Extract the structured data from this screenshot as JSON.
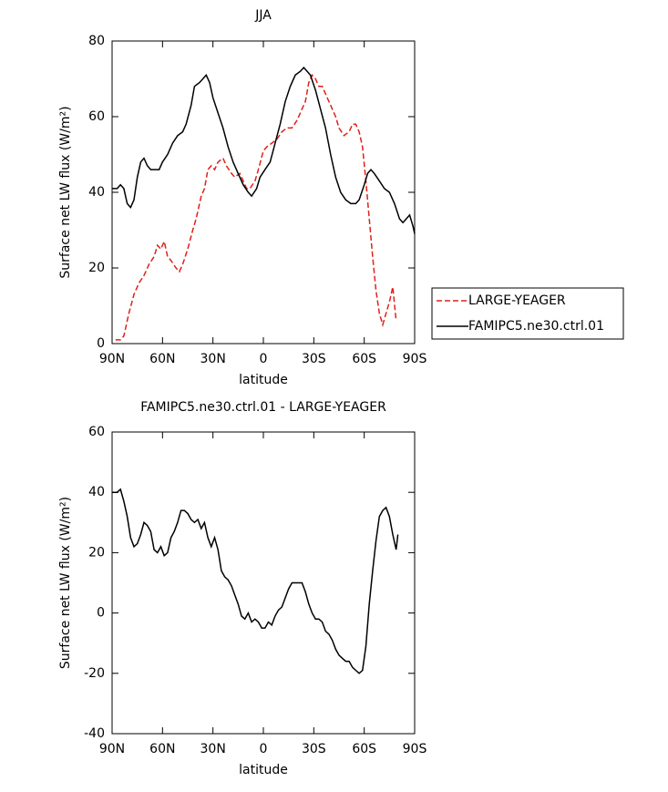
{
  "chart_data": [
    {
      "type": "line",
      "title": "JJA",
      "xlabel": "latitude",
      "ylabel": "Surface net LW flux (W/m²)",
      "xlim": [
        90,
        -90
      ],
      "xticks": [
        {
          "value": 90,
          "label": "90N"
        },
        {
          "value": 60,
          "label": "60N"
        },
        {
          "value": 30,
          "label": "30N"
        },
        0,
        {
          "value": -30,
          "label": "30S"
        },
        {
          "value": -60,
          "label": "60S"
        },
        {
          "value": -90,
          "label": "90S"
        }
      ],
      "ylim": [
        0,
        80
      ],
      "yticks": [
        0,
        20,
        40,
        60,
        80
      ],
      "grid": false,
      "legend_position": "outside-right",
      "series": [
        {
          "name": "LARGE-YEAGER",
          "color": "#e0201b",
          "line_style": "dashed",
          "x": [
            88,
            85,
            83,
            80,
            77,
            74,
            71,
            68,
            65,
            63,
            61,
            59,
            57,
            55,
            52,
            50,
            48,
            45,
            42,
            40,
            37,
            35,
            33,
            31,
            29,
            27,
            24,
            22,
            19,
            17,
            14,
            12,
            10,
            8,
            5,
            3,
            0,
            -2,
            -5,
            -8,
            -11,
            -14,
            -17,
            -20,
            -23,
            -25,
            -27,
            -29,
            -31,
            -33,
            -35,
            -38,
            -40,
            -43,
            -45,
            -48,
            -51,
            -53,
            -55,
            -57,
            -59,
            -61,
            -63,
            -65,
            -67,
            -69,
            -71,
            -73,
            -75,
            -77,
            -79
          ],
          "values": [
            1,
            1,
            2,
            8,
            13,
            16,
            18,
            21,
            23,
            26,
            25,
            27,
            23,
            22,
            20,
            19,
            21,
            25,
            30,
            33,
            39,
            41,
            46,
            47,
            46,
            48,
            49,
            47,
            45,
            44,
            45,
            43,
            41,
            41,
            43,
            46,
            51,
            52,
            53,
            54,
            56,
            57,
            57,
            59,
            62,
            64,
            69,
            71,
            70,
            68,
            68,
            65,
            63,
            60,
            57,
            55,
            56,
            58,
            58,
            56,
            52,
            43,
            33,
            23,
            14,
            8,
            5,
            8,
            11,
            15,
            6
          ]
        },
        {
          "name": "FAMIPC5.ne30.ctrl.01",
          "color": "#000000",
          "line_style": "solid",
          "x": [
            90,
            87,
            85,
            83,
            81,
            79,
            77,
            75,
            73,
            71,
            69,
            67,
            64,
            62,
            60,
            57,
            54,
            51,
            48,
            46,
            43,
            41,
            38,
            36,
            34,
            32,
            30,
            27,
            24,
            21,
            18,
            15,
            12,
            9,
            7,
            4,
            2,
            -1,
            -4,
            -7,
            -10,
            -13,
            -16,
            -19,
            -22,
            -24,
            -26,
            -28,
            -31,
            -34,
            -37,
            -40,
            -43,
            -46,
            -49,
            -52,
            -55,
            -57,
            -60,
            -62,
            -64,
            -66,
            -69,
            -72,
            -75,
            -78,
            -81,
            -83,
            -85,
            -87,
            -89,
            -90
          ],
          "values": [
            41,
            41,
            42,
            41,
            37,
            36,
            38,
            44,
            48,
            49,
            47,
            46,
            46,
            46,
            48,
            50,
            53,
            55,
            56,
            58,
            63,
            68,
            69,
            70,
            71,
            69,
            65,
            61,
            57,
            52,
            48,
            45,
            42,
            40,
            39,
            41,
            44,
            46,
            48,
            53,
            58,
            64,
            68,
            71,
            72,
            73,
            72,
            71,
            67,
            62,
            57,
            50,
            44,
            40,
            38,
            37,
            37,
            38,
            42,
            45,
            46,
            45,
            43,
            41,
            40,
            37,
            33,
            32,
            33,
            34,
            31,
            29
          ]
        }
      ]
    },
    {
      "type": "line",
      "title": "FAMIPC5.ne30.ctrl.01 - LARGE-YEAGER",
      "xlabel": "latitude",
      "ylabel": "Surface net LW flux (W/m²)",
      "xlim": [
        90,
        -90
      ],
      "xticks": [
        {
          "value": 90,
          "label": "90N"
        },
        {
          "value": 60,
          "label": "60N"
        },
        {
          "value": 30,
          "label": "30N"
        },
        0,
        {
          "value": -30,
          "label": "30S"
        },
        {
          "value": -60,
          "label": "60S"
        },
        {
          "value": -90,
          "label": "90S"
        }
      ],
      "ylim": [
        -40,
        60
      ],
      "yticks": [
        -40,
        -20,
        0,
        20,
        40,
        60
      ],
      "grid": false,
      "series": [
        {
          "color": "#000000",
          "line_style": "solid",
          "x": [
            90,
            87,
            85,
            83,
            81,
            79,
            77,
            75,
            73,
            71,
            69,
            67,
            65,
            63,
            61,
            59,
            57,
            55,
            53,
            51,
            49,
            47,
            45,
            43,
            41,
            39,
            37,
            35,
            33,
            31,
            29,
            27,
            25,
            23,
            21,
            19,
            17,
            15,
            13,
            11,
            9,
            7,
            5,
            3,
            1,
            -1,
            -3,
            -5,
            -7,
            -9,
            -11,
            -13,
            -15,
            -17,
            -19,
            -21,
            -23,
            -25,
            -27,
            -29,
            -31,
            -33,
            -35,
            -37,
            -39,
            -41,
            -43,
            -45,
            -47,
            -49,
            -51,
            -53,
            -55,
            -57,
            -59,
            -61,
            -63,
            -65,
            -67,
            -69,
            -71,
            -73,
            -75,
            -77,
            -79,
            -80
          ],
          "values": [
            40,
            40,
            41,
            37,
            32,
            25,
            22,
            23,
            26,
            30,
            29,
            27,
            21,
            20,
            22,
            19,
            20,
            25,
            27,
            30,
            34,
            34,
            33,
            31,
            30,
            31,
            28,
            30,
            25,
            22,
            25,
            21,
            14,
            12,
            11,
            9,
            6,
            3,
            -1,
            -2,
            0,
            -3,
            -2,
            -3,
            -5,
            -5,
            -3,
            -4,
            -1,
            1,
            2,
            5,
            8,
            10,
            10,
            10,
            10,
            7,
            3,
            0,
            -2,
            -2,
            -3,
            -6,
            -7,
            -9,
            -12,
            -14,
            -15,
            -16,
            -16,
            -18,
            -19,
            -20,
            -19,
            -11,
            3,
            14,
            24,
            32,
            34,
            35,
            32,
            26,
            21,
            26
          ]
        }
      ]
    }
  ]
}
